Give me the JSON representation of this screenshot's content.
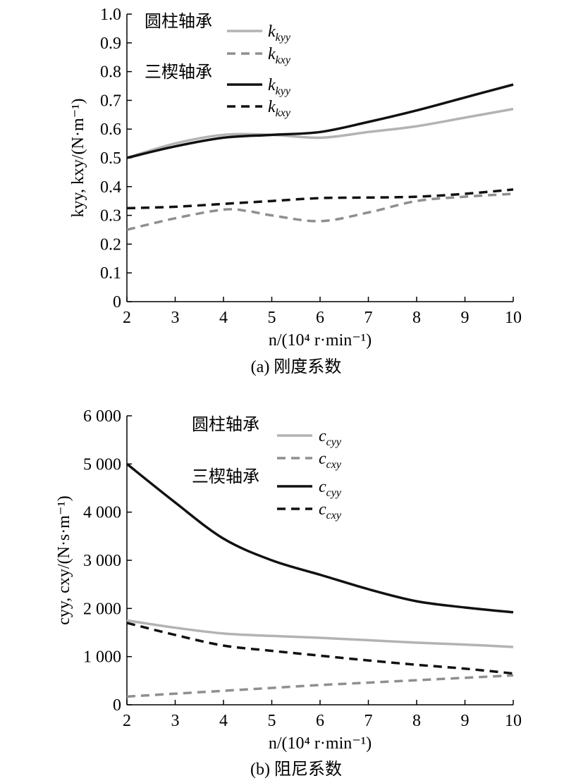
{
  "chart_data": [
    {
      "type": "line",
      "caption": "(a) 刚度系数",
      "xlabel": "n/(10⁴ r·min⁻¹)",
      "ylabel": "kyy, kxy/(N·m⁻¹)",
      "xlim": [
        2,
        10
      ],
      "ylim": [
        0,
        1.0
      ],
      "x_ticks": [
        "2",
        "3",
        "4",
        "5",
        "6",
        "7",
        "8",
        "9",
        "10"
      ],
      "y_ticks": [
        "0",
        "0.1",
        "0.2",
        "0.3",
        "0.4",
        "0.5",
        "0.6",
        "0.7",
        "0.8",
        "0.9",
        "1.0"
      ],
      "legend_groups": [
        {
          "label": "圆柱轴承",
          "entries": [
            {
              "name": "kyy",
              "color": "#b3b3b3",
              "dash": "solid"
            },
            {
              "name": "kxy",
              "color": "#8f8f8f",
              "dash": "dashed"
            }
          ]
        },
        {
          "label": "三楔轴承",
          "entries": [
            {
              "name": "kyy",
              "color": "#111111",
              "dash": "solid"
            },
            {
              "name": "kxy",
              "color": "#111111",
              "dash": "dashed"
            }
          ]
        }
      ],
      "legend_position": "top-center",
      "grid": false,
      "series": [
        {
          "group": "圆柱轴承",
          "name": "kyy",
          "color": "#b3b3b3",
          "dash": "solid",
          "x": [
            2,
            3,
            4,
            5,
            6,
            7,
            8,
            9,
            10
          ],
          "y": [
            0.5,
            0.55,
            0.58,
            0.58,
            0.57,
            0.59,
            0.61,
            0.64,
            0.67
          ]
        },
        {
          "group": "圆柱轴承",
          "name": "kxy",
          "color": "#8f8f8f",
          "dash": "dashed",
          "x": [
            2,
            3,
            4,
            4.5,
            5,
            6,
            7,
            8,
            9,
            10
          ],
          "y": [
            0.25,
            0.29,
            0.32,
            0.315,
            0.3,
            0.28,
            0.31,
            0.35,
            0.365,
            0.375
          ]
        },
        {
          "group": "三楔轴承",
          "name": "kyy",
          "color": "#111111",
          "dash": "solid",
          "x": [
            2,
            3,
            4,
            5,
            6,
            7,
            8,
            9,
            10
          ],
          "y": [
            0.5,
            0.54,
            0.57,
            0.58,
            0.59,
            0.625,
            0.665,
            0.71,
            0.755
          ]
        },
        {
          "group": "三楔轴承",
          "name": "kxy",
          "color": "#111111",
          "dash": "dashed",
          "x": [
            2,
            3,
            4,
            5,
            6,
            7,
            8,
            9,
            10
          ],
          "y": [
            0.325,
            0.33,
            0.34,
            0.35,
            0.36,
            0.362,
            0.365,
            0.375,
            0.39
          ]
        }
      ]
    },
    {
      "type": "line",
      "caption": "(b) 阻尼系数",
      "xlabel": "n/(10⁴ r·min⁻¹)",
      "ylabel": "cyy, cxy/(N·s·m⁻¹)",
      "xlim": [
        2,
        10
      ],
      "ylim": [
        0,
        6000
      ],
      "x_ticks": [
        "2",
        "3",
        "4",
        "5",
        "6",
        "7",
        "8",
        "9",
        "10"
      ],
      "y_ticks": [
        "0",
        "1 000",
        "2 000",
        "3 000",
        "4 000",
        "5 000",
        "6 000"
      ],
      "legend_groups": [
        {
          "label": "圆柱轴承",
          "entries": [
            {
              "name": "cyy",
              "color": "#b3b3b3",
              "dash": "solid"
            },
            {
              "name": "cxy",
              "color": "#8f8f8f",
              "dash": "dashed"
            }
          ]
        },
        {
          "label": "三楔轴承",
          "entries": [
            {
              "name": "cyy",
              "color": "#111111",
              "dash": "solid"
            },
            {
              "name": "cxy",
              "color": "#111111",
              "dash": "dashed"
            }
          ]
        }
      ],
      "legend_position": "top-center",
      "grid": false,
      "series": [
        {
          "group": "圆柱轴承",
          "name": "cyy",
          "color": "#b3b3b3",
          "dash": "solid",
          "x": [
            2,
            3,
            4,
            5,
            6,
            7,
            8,
            9,
            10
          ],
          "y": [
            1750,
            1600,
            1480,
            1430,
            1390,
            1340,
            1290,
            1250,
            1200
          ]
        },
        {
          "group": "圆柱轴承",
          "name": "cxy",
          "color": "#8f8f8f",
          "dash": "dashed",
          "x": [
            2,
            3,
            4,
            5,
            6,
            7,
            8,
            9,
            10
          ],
          "y": [
            170,
            230,
            290,
            350,
            410,
            460,
            510,
            560,
            610
          ]
        },
        {
          "group": "三楔轴承",
          "name": "cyy",
          "color": "#111111",
          "dash": "solid",
          "x": [
            2,
            3,
            4,
            5,
            6,
            7,
            8,
            9,
            10
          ],
          "y": [
            5000,
            4200,
            3450,
            3000,
            2700,
            2400,
            2150,
            2020,
            1920
          ]
        },
        {
          "group": "三楔轴承",
          "name": "cxy",
          "color": "#111111",
          "dash": "dashed",
          "x": [
            2,
            3,
            4,
            5,
            6,
            7,
            8,
            9,
            10
          ],
          "y": [
            1700,
            1450,
            1230,
            1120,
            1020,
            920,
            830,
            750,
            650
          ]
        }
      ]
    }
  ]
}
